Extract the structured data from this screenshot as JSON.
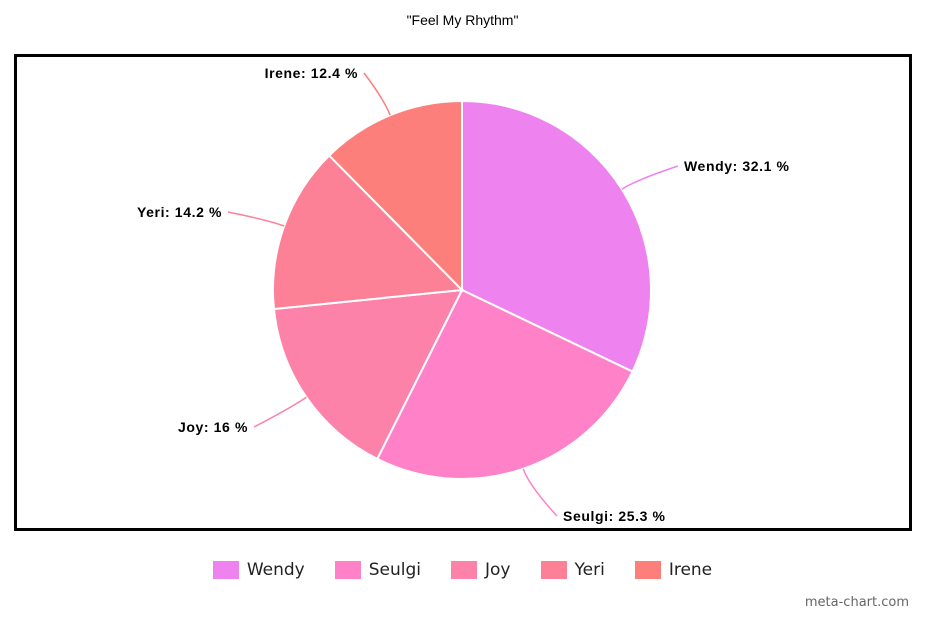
{
  "chart_data": {
    "type": "pie",
    "title": "\"Feel My Rhythm\"",
    "categories": [
      "Wendy",
      "Seulgi",
      "Joy",
      "Yeri",
      "Irene"
    ],
    "values": [
      32.1,
      25.3,
      16,
      14.2,
      12.4
    ],
    "unit": "%",
    "labels": [
      "Wendy: 32.1 %",
      "Seulgi: 25.3 %",
      "Joy: 16 %",
      "Yeri: 14.2 %",
      "Irene: 12.4 %"
    ],
    "colors": [
      "#ee82ee",
      "#ff82c8",
      "#fc82aa",
      "#fc8096",
      "#fc7f7b"
    ],
    "legend": {
      "position": "bottom",
      "items": [
        "Wendy",
        "Seulgi",
        "Joy",
        "Yeri",
        "Irene"
      ]
    },
    "start_angle_deg": 0,
    "direction": "clockwise"
  },
  "watermark": "meta-chart.com"
}
